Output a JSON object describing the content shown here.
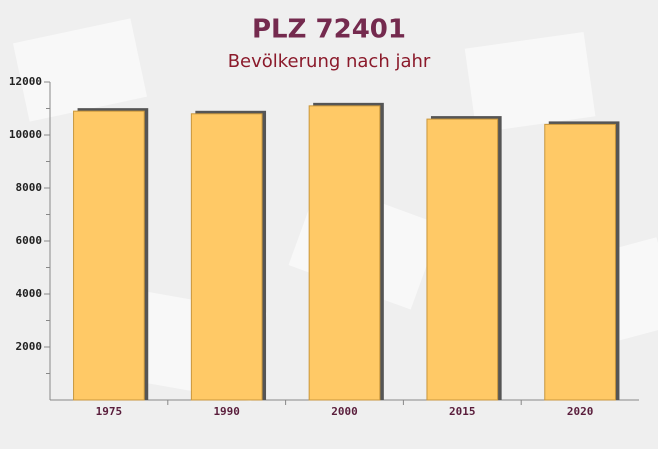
{
  "chart_data": {
    "type": "bar",
    "title": "PLZ 72401",
    "subtitle": "Bevölkerung nach jahr",
    "categories": [
      "1975",
      "1990",
      "2000",
      "2015",
      "2020"
    ],
    "values": [
      10900,
      10800,
      11100,
      10600,
      10400
    ],
    "color": "#ffc966",
    "ylim": [
      0,
      12000
    ],
    "yticks": [
      2000,
      4000,
      6000,
      8000,
      10000,
      12000
    ],
    "grid": false
  }
}
